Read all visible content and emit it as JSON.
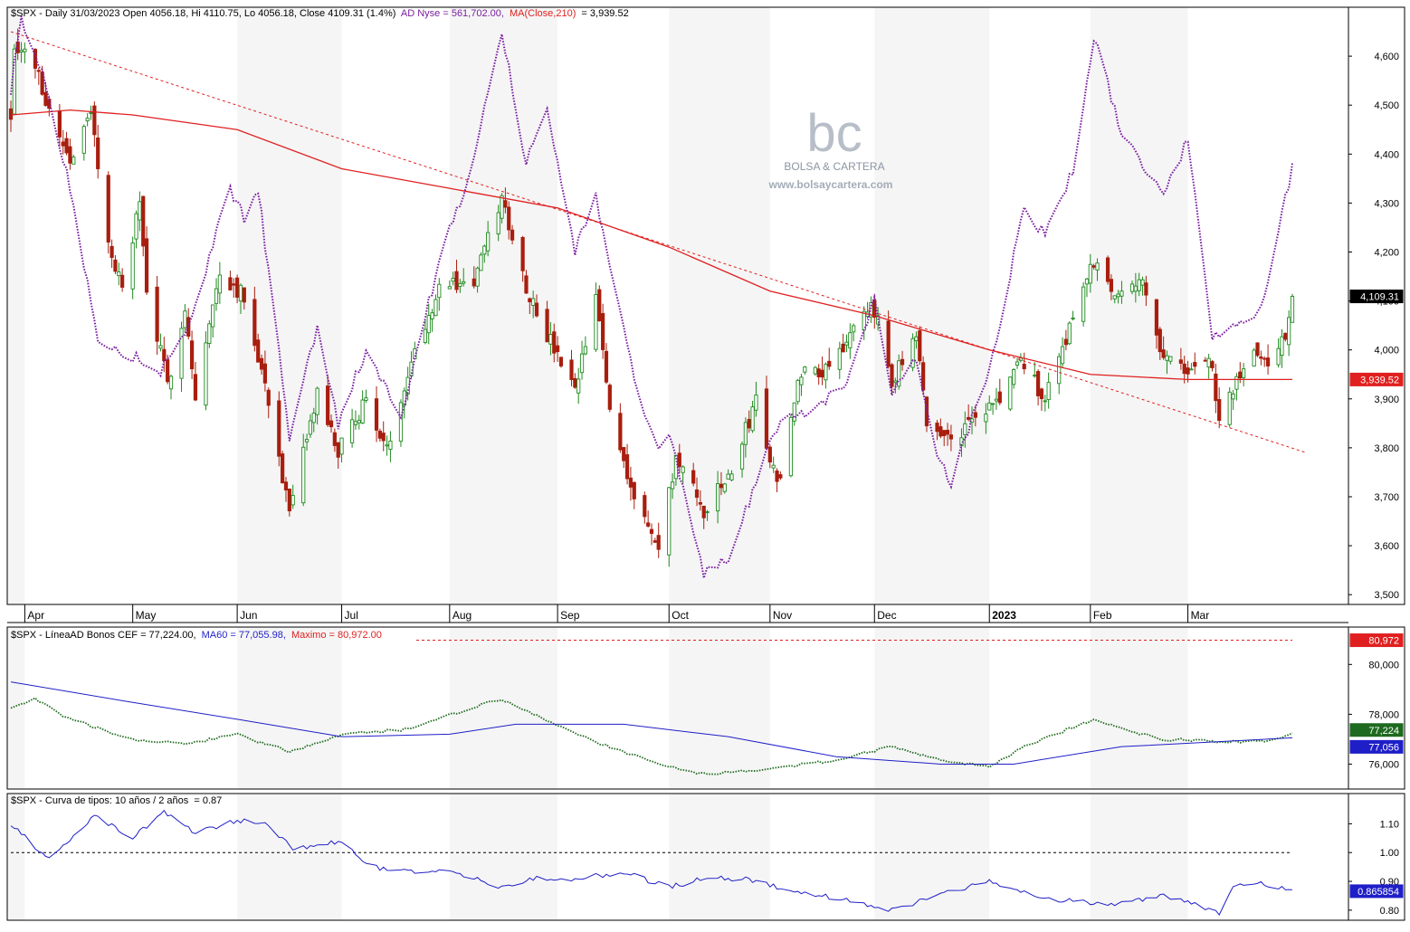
{
  "colors": {
    "up": "#1e8a1e",
    "down": "#a81e0e",
    "ad_line": "#7b1fa2",
    "ma": "#e02020",
    "trend": "#e02020",
    "cef": "#1e6a1e",
    "ma60": "#1f1fc8",
    "maximo": "#e02020",
    "curve": "#1f1fc8",
    "band": "#ececec",
    "axis_text": "#000000"
  },
  "watermark": {
    "logo": "bc",
    "name": "BOLSA & CARTERA",
    "url": "www.bolsaycartera.com"
  },
  "months": [
    "Apr",
    "May",
    "Jun",
    "Jul",
    "Aug",
    "Sep",
    "Oct",
    "Nov",
    "Dec",
    "2023",
    "Feb",
    "Mar"
  ],
  "panel1": {
    "header": {
      "ticker": "$SPX - Daily 31/03/2023 Open 4056.18, Hi 4110.75, Lo 4056.18, Close 4109.31 (1.4%)",
      "ad": "AD Nyse = 561,702.00,",
      "ma": "MA(Close,210)",
      "ma_value": "= 3,939.52"
    },
    "ylim": [
      3480,
      4700
    ],
    "ticks": [
      "4,600",
      "4,500",
      "4,400",
      "4,300",
      "4,200",
      "4,100",
      "4,000",
      "3,900",
      "3,800",
      "3,700",
      "3,600",
      "3,500"
    ],
    "tick_values": [
      4600,
      4500,
      4400,
      4300,
      4200,
      4100,
      4000,
      3900,
      3800,
      3700,
      3600,
      3500
    ],
    "close_tag": "4,109.31",
    "close_value": 4109.31,
    "ma_tag": "3,939.52",
    "ma_value": 3939.52
  },
  "panel2": {
    "header": {
      "ticker": "$SPX - LíneaAD Bonos CEF = 77,224.00,",
      "ma60": "MA60 = 77,055.98,",
      "maximo": "Maximo = 80,972.00"
    },
    "ylim": [
      75000,
      81500
    ],
    "ticks": [
      "80,000",
      "78,000",
      "76,000"
    ],
    "tick_values": [
      80000,
      78000,
      76000
    ],
    "max_tag": "80,972",
    "max_value": 80972,
    "cef_tag": "77,224",
    "cef_value": 77224,
    "ma60_tag": "77,056",
    "ma60_value": 77056
  },
  "panel3": {
    "header": {
      "ticker": "$SPX - Curva de tipos: 10 años / 2 años",
      "value": "= 0.87"
    },
    "ylim": [
      0.765,
      1.205
    ],
    "ticks": [
      "1.10",
      "1.00",
      "0.90",
      "0.80"
    ],
    "tick_values": [
      1.1,
      1.0,
      0.9,
      0.8
    ],
    "ref_value": 1.0,
    "last_tag": "0.865854",
    "last_value": 0.865854
  },
  "chart_data": [
    {
      "type": "candlestick",
      "title": "$SPX - Daily 31/03/2023 Open 4056.18, Hi 4110.75, Lo 4056.18, Close 4109.31 (1.4%)",
      "x_range": [
        "2022-03-28",
        "2023-03-31"
      ],
      "close_keypoints": [
        [
          "2022-03-28",
          4480
        ],
        [
          "2022-03-29",
          4630
        ],
        [
          "2022-04-04",
          4580
        ],
        [
          "2022-04-08",
          4490
        ],
        [
          "2022-04-14",
          4390
        ],
        [
          "2022-04-20",
          4480
        ],
        [
          "2022-04-26",
          4180
        ],
        [
          "2022-04-29",
          4130
        ],
        [
          "2022-05-04",
          4300
        ],
        [
          "2022-05-06",
          4120
        ],
        [
          "2022-05-12",
          3930
        ],
        [
          "2022-05-17",
          4090
        ],
        [
          "2022-05-20",
          3900
        ],
        [
          "2022-05-27",
          4160
        ],
        [
          "2022-06-03",
          4110
        ],
        [
          "2022-06-10",
          3900
        ],
        [
          "2022-06-16",
          3660
        ],
        [
          "2022-06-24",
          3910
        ],
        [
          "2022-06-30",
          3790
        ],
        [
          "2022-07-08",
          3900
        ],
        [
          "2022-07-14",
          3790
        ],
        [
          "2022-07-20",
          3960
        ],
        [
          "2022-07-29",
          4130
        ],
        [
          "2022-08-08",
          4140
        ],
        [
          "2022-08-16",
          4310
        ],
        [
          "2022-08-23",
          4130
        ],
        [
          "2022-08-29",
          4030
        ],
        [
          "2022-09-06",
          3910
        ],
        [
          "2022-09-12",
          4110
        ],
        [
          "2022-09-16",
          3880
        ],
        [
          "2022-09-23",
          3700
        ],
        [
          "2022-09-30",
          3590
        ],
        [
          "2022-10-05",
          3780
        ],
        [
          "2022-10-13",
          3670
        ],
        [
          "2022-10-21",
          3750
        ],
        [
          "2022-10-28",
          3900
        ],
        [
          "2022-11-03",
          3720
        ],
        [
          "2022-11-10",
          3960
        ],
        [
          "2022-11-16",
          3960
        ],
        [
          "2022-11-30",
          4080
        ],
        [
          "2022-12-02",
          4070
        ],
        [
          "2022-12-06",
          3940
        ],
        [
          "2022-12-13",
          4020
        ],
        [
          "2022-12-16",
          3850
        ],
        [
          "2022-12-22",
          3820
        ],
        [
          "2022-12-29",
          3850
        ],
        [
          "2023-01-06",
          3900
        ],
        [
          "2023-01-12",
          3980
        ],
        [
          "2023-01-19",
          3900
        ],
        [
          "2023-01-27",
          4070
        ],
        [
          "2023-02-02",
          4180
        ],
        [
          "2023-02-08",
          4120
        ],
        [
          "2023-02-15",
          4150
        ],
        [
          "2023-02-22",
          3990
        ],
        [
          "2023-03-01",
          3950
        ],
        [
          "2023-03-07",
          3990
        ],
        [
          "2023-03-10",
          3860
        ],
        [
          "2023-03-14",
          3920
        ],
        [
          "2023-03-21",
          4000
        ],
        [
          "2023-03-24",
          3970
        ],
        [
          "2023-03-29",
          4030
        ],
        [
          "2023-03-31",
          4109.31
        ]
      ],
      "last_bar": {
        "open": 4056.18,
        "high": 4110.75,
        "low": 4056.18,
        "close": 4109.31,
        "change_pct": 1.4
      },
      "series": [
        {
          "name": "AD Nyse",
          "last_value": 561702.0,
          "shape_keypoints": [
            [
              "2022-03-28",
              4530
            ],
            [
              "2022-03-31",
              4680
            ],
            [
              "2022-04-05",
              4590
            ],
            [
              "2022-04-14",
              4330
            ],
            [
              "2022-04-22",
              4020
            ],
            [
              "2022-05-10",
              3960
            ],
            [
              "2022-05-18",
              4050
            ],
            [
              "2022-05-30",
              4330
            ],
            [
              "2022-06-03",
              4270
            ],
            [
              "2022-06-07",
              4330
            ],
            [
              "2022-06-16",
              3820
            ],
            [
              "2022-06-24",
              4050
            ],
            [
              "2022-06-30",
              3850
            ],
            [
              "2022-07-08",
              4000
            ],
            [
              "2022-07-18",
              3870
            ],
            [
              "2022-07-29",
              4180
            ],
            [
              "2022-08-08",
              4390
            ],
            [
              "2022-08-16",
              4650
            ],
            [
              "2022-08-23",
              4380
            ],
            [
              "2022-08-29",
              4490
            ],
            [
              "2022-09-06",
              4200
            ],
            [
              "2022-09-12",
              4310
            ],
            [
              "2022-09-23",
              3940
            ],
            [
              "2022-09-30",
              3790
            ],
            [
              "2022-10-03",
              3830
            ],
            [
              "2022-10-13",
              3540
            ],
            [
              "2022-10-21",
              3580
            ],
            [
              "2022-10-31",
              3800
            ],
            [
              "2022-11-04",
              3850
            ],
            [
              "2022-11-15",
              3890
            ],
            [
              "2022-11-23",
              3930
            ],
            [
              "2022-12-01",
              4110
            ],
            [
              "2022-12-06",
              3910
            ],
            [
              "2022-12-13",
              3990
            ],
            [
              "2022-12-19",
              3780
            ],
            [
              "2022-12-23",
              3730
            ],
            [
              "2023-01-05",
              4010
            ],
            [
              "2023-01-13",
              4300
            ],
            [
              "2023-01-19",
              4230
            ],
            [
              "2023-01-27",
              4370
            ],
            [
              "2023-02-02",
              4640
            ],
            [
              "2023-02-10",
              4440
            ],
            [
              "2023-02-22",
              4320
            ],
            [
              "2023-03-01",
              4430
            ],
            [
              "2023-03-08",
              4020
            ],
            [
              "2023-03-15",
              4060
            ],
            [
              "2023-03-22",
              4080
            ],
            [
              "2023-03-31",
              4370
            ]
          ]
        },
        {
          "name": "MA(Close,210)",
          "last_value": 3939.52,
          "keypoints": [
            [
              "2022-03-28",
              4480
            ],
            [
              "2022-04-14",
              4490
            ],
            [
              "2022-05-02",
              4480
            ],
            [
              "2022-06-01",
              4450
            ],
            [
              "2022-07-01",
              4370
            ],
            [
              "2022-08-01",
              4330
            ],
            [
              "2022-09-01",
              4290
            ],
            [
              "2022-10-03",
              4210
            ],
            [
              "2022-11-01",
              4120
            ],
            [
              "2022-12-01",
              4070
            ],
            [
              "2023-01-03",
              4000
            ],
            [
              "2023-02-01",
              3950
            ],
            [
              "2023-03-01",
              3939.52
            ],
            [
              "2023-03-31",
              3939.52
            ]
          ]
        },
        {
          "name": "trend",
          "from": [
            "2022-03-28",
            4650
          ],
          "to": [
            "2023-04-04",
            3790
          ]
        }
      ]
    },
    {
      "type": "line",
      "title": "$SPX - LíneaAD Bonos CEF = 77,224.00, MA60 = 77,055.98, Maximo = 80,972.00",
      "series": [
        {
          "name": "LíneaAD Bonos CEF",
          "last_value": 77224.0,
          "keypoints": [
            [
              "2022-03-28",
              78200
            ],
            [
              "2022-04-04",
              78600
            ],
            [
              "2022-04-14",
              77800
            ],
            [
              "2022-05-02",
              77000
            ],
            [
              "2022-05-17",
              76800
            ],
            [
              "2022-06-01",
              77200
            ],
            [
              "2022-06-16",
              76500
            ],
            [
              "2022-07-01",
              77200
            ],
            [
              "2022-07-20",
              77400
            ],
            [
              "2022-08-08",
              78300
            ],
            [
              "2022-08-16",
              78600
            ],
            [
              "2022-08-25",
              78000
            ],
            [
              "2022-09-12",
              76900
            ],
            [
              "2022-09-30",
              76000
            ],
            [
              "2022-10-13",
              75600
            ],
            [
              "2022-11-01",
              75800
            ],
            [
              "2022-11-21",
              76200
            ],
            [
              "2022-12-06",
              76700
            ],
            [
              "2022-12-19",
              76200
            ],
            [
              "2023-01-03",
              75900
            ],
            [
              "2023-01-13",
              76700
            ],
            [
              "2023-02-02",
              77800
            ],
            [
              "2023-02-10",
              77400
            ],
            [
              "2023-02-22",
              77000
            ],
            [
              "2023-03-10",
              76900
            ],
            [
              "2023-03-24",
              76900
            ],
            [
              "2023-03-31",
              77224
            ]
          ]
        },
        {
          "name": "MA60",
          "last_value": 77055.98,
          "keypoints": [
            [
              "2022-03-28",
              79300
            ],
            [
              "2022-05-01",
              78500
            ],
            [
              "2022-06-01",
              77800
            ],
            [
              "2022-07-01",
              77100
            ],
            [
              "2022-08-01",
              77200
            ],
            [
              "2022-08-20",
              77600
            ],
            [
              "2022-09-20",
              77600
            ],
            [
              "2022-10-20",
              77100
            ],
            [
              "2022-11-20",
              76300
            ],
            [
              "2022-12-20",
              76000
            ],
            [
              "2023-01-10",
              76000
            ],
            [
              "2023-02-10",
              76700
            ],
            [
              "2023-03-10",
              76900
            ],
            [
              "2023-03-31",
              77056
            ]
          ]
        },
        {
          "name": "Maximo",
          "value": 80972.0
        }
      ]
    },
    {
      "type": "line",
      "title": "$SPX - Curva de tipos: 10 años / 2 años = 0.87",
      "reference": 1.0,
      "series": [
        {
          "name": "Curva de tipos: 10 años / 2 años",
          "last_value": 0.865854,
          "keypoints": [
            [
              "2022-03-28",
              1.1
            ],
            [
              "2022-04-04",
              1.02
            ],
            [
              "2022-04-08",
              0.98
            ],
            [
              "2022-04-21",
              1.13
            ],
            [
              "2022-05-02",
              1.05
            ],
            [
              "2022-05-11",
              1.14
            ],
            [
              "2022-05-20",
              1.07
            ],
            [
              "2022-06-01",
              1.11
            ],
            [
              "2022-06-10",
              1.1
            ],
            [
              "2022-06-17",
              1.01
            ],
            [
              "2022-07-01",
              1.04
            ],
            [
              "2022-07-08",
              0.96
            ],
            [
              "2022-07-14",
              0.94
            ],
            [
              "2022-08-02",
              0.93
            ],
            [
              "2022-08-16",
              0.88
            ],
            [
              "2022-08-25",
              0.91
            ],
            [
              "2022-09-06",
              0.91
            ],
            [
              "2022-09-20",
              0.93
            ],
            [
              "2022-10-03",
              0.88
            ],
            [
              "2022-10-13",
              0.91
            ],
            [
              "2022-10-25",
              0.91
            ],
            [
              "2022-11-10",
              0.86
            ],
            [
              "2022-11-22",
              0.84
            ],
            [
              "2022-12-06",
              0.8
            ],
            [
              "2022-12-19",
              0.85
            ],
            [
              "2023-01-03",
              0.9
            ],
            [
              "2023-01-20",
              0.84
            ],
            [
              "2023-02-08",
              0.82
            ],
            [
              "2023-02-22",
              0.85
            ],
            [
              "2023-03-06",
              0.81
            ],
            [
              "2023-03-10",
              0.79
            ],
            [
              "2023-03-14",
              0.88
            ],
            [
              "2023-03-22",
              0.89
            ],
            [
              "2023-03-31",
              0.866
            ]
          ]
        }
      ]
    }
  ]
}
